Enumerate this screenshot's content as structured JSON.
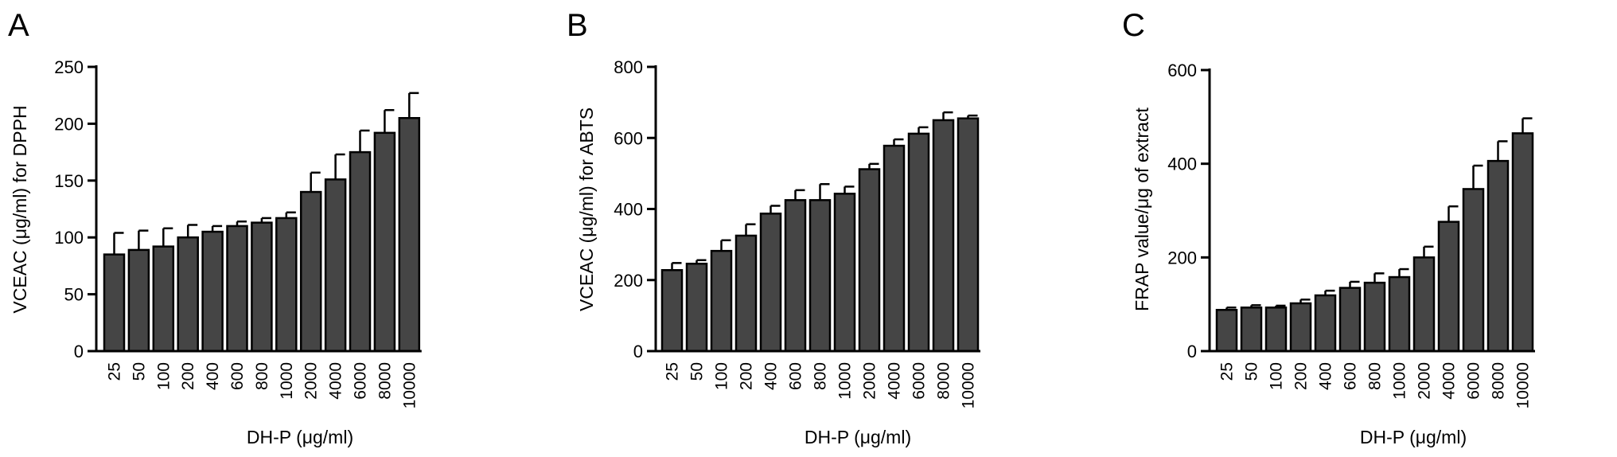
{
  "chart_data": [
    {
      "panel": "A",
      "type": "bar",
      "categories": [
        "25",
        "50",
        "100",
        "200",
        "400",
        "600",
        "800",
        "1000",
        "2000",
        "4000",
        "6000",
        "8000",
        "10000"
      ],
      "values": [
        85,
        89,
        92,
        100,
        105,
        110,
        113,
        117,
        140,
        151,
        175,
        192,
        205
      ],
      "errors": [
        19,
        17,
        16,
        11,
        5,
        4,
        4,
        5,
        17,
        22,
        19,
        20,
        22
      ],
      "xlabel": "DH-P (μg/ml)",
      "ylabel": "VCEAC (μg/ml) for DPPH",
      "ylim": [
        0,
        250
      ],
      "yticks": [
        "0",
        "50",
        "100",
        "150",
        "200",
        "250"
      ],
      "grid": false,
      "bar_color": "#454545"
    },
    {
      "panel": "B",
      "type": "bar",
      "categories": [
        "25",
        "50",
        "100",
        "200",
        "400",
        "600",
        "800",
        "1000",
        "2000",
        "4000",
        "6000",
        "8000",
        "10000"
      ],
      "values": [
        228,
        246,
        282,
        325,
        387,
        425,
        425,
        443,
        512,
        578,
        612,
        650,
        655
      ],
      "errors": [
        20,
        10,
        30,
        32,
        22,
        28,
        45,
        20,
        15,
        18,
        18,
        22,
        8
      ],
      "xlabel": "DH-P (μg/ml)",
      "ylabel": "VCEAC (μg/ml) for ABTS",
      "ylim": [
        0,
        800
      ],
      "yticks": [
        "0",
        "200",
        "400",
        "600",
        "800"
      ],
      "grid": false,
      "bar_color": "#454545"
    },
    {
      "panel": "C",
      "type": "bar",
      "categories": [
        "25",
        "50",
        "100",
        "200",
        "400",
        "600",
        "800",
        "1000",
        "2000",
        "4000",
        "6000",
        "8000",
        "10000"
      ],
      "values": [
        88,
        93,
        93,
        102,
        119,
        135,
        146,
        158,
        200,
        276,
        346,
        406,
        465
      ],
      "errors": [
        5,
        5,
        4,
        8,
        10,
        13,
        20,
        17,
        23,
        33,
        50,
        42,
        32
      ],
      "xlabel": "DH-P (μg/ml)",
      "ylabel": "FRAP value/μg of extract",
      "ylim": [
        0,
        600
      ],
      "yticks": [
        "0",
        "200",
        "400",
        "600"
      ],
      "grid": false,
      "bar_color": "#454545"
    }
  ]
}
